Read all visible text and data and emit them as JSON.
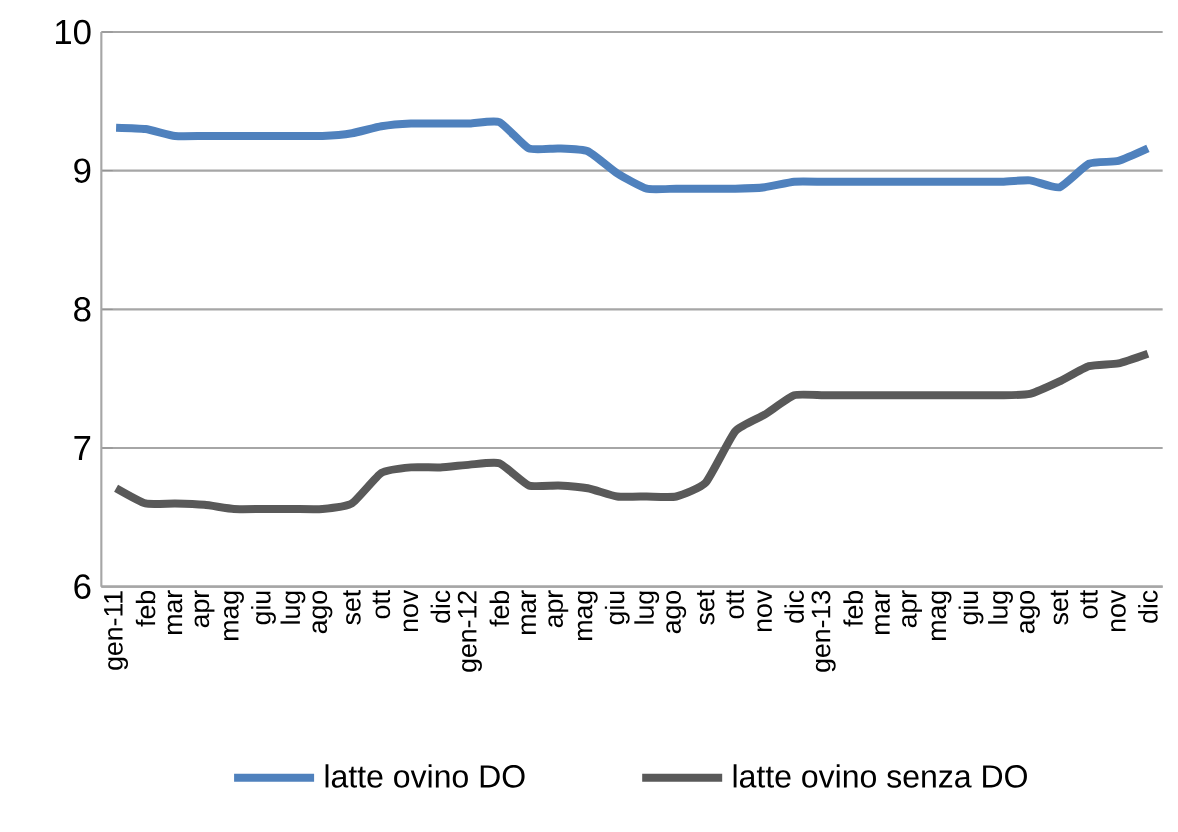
{
  "chart_data": {
    "type": "line",
    "categories": [
      "gen-11",
      "feb",
      "mar",
      "apr",
      "mag",
      "giu",
      "lug",
      "ago",
      "set",
      "ott",
      "nov",
      "dic",
      "gen-12",
      "feb",
      "mar",
      "apr",
      "mag",
      "giu",
      "lug",
      "ago",
      "set",
      "ott",
      "nov",
      "dic",
      "gen-13",
      "feb",
      "mar",
      "apr",
      "mag",
      "giu",
      "lug",
      "ago",
      "set",
      "ott",
      "nov",
      "dic"
    ],
    "series": [
      {
        "name": "latte ovino  DO",
        "color": "#4f81bd",
        "values": [
          9.31,
          9.3,
          9.25,
          9.25,
          9.25,
          9.25,
          9.25,
          9.25,
          9.27,
          9.32,
          9.34,
          9.34,
          9.34,
          9.35,
          9.16,
          9.16,
          9.14,
          8.98,
          8.87,
          8.87,
          8.87,
          8.87,
          8.88,
          8.92,
          8.92,
          8.92,
          8.92,
          8.92,
          8.92,
          8.92,
          8.92,
          8.93,
          8.88,
          9.05,
          9.07,
          9.16
        ]
      },
      {
        "name": "latte ovino  senza DO",
        "color": "#595959",
        "values": [
          6.71,
          6.6,
          6.6,
          6.59,
          6.56,
          6.56,
          6.56,
          6.56,
          6.6,
          6.82,
          6.86,
          6.86,
          6.88,
          6.89,
          6.73,
          6.73,
          6.71,
          6.65,
          6.65,
          6.65,
          6.75,
          7.12,
          7.24,
          7.38,
          7.38,
          7.38,
          7.38,
          7.38,
          7.38,
          7.38,
          7.38,
          7.39,
          7.48,
          7.59,
          7.61,
          7.68
        ]
      }
    ],
    "ylim": [
      6,
      10
    ],
    "yticks": [
      6,
      7,
      8,
      9,
      10
    ],
    "grid": "y",
    "legend": "bottom",
    "marker": "none",
    "line_style": "solid"
  }
}
